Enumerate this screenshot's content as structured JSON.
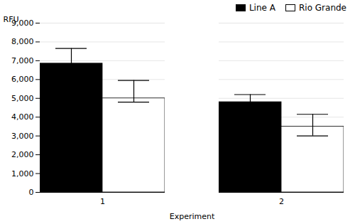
{
  "chart_data": {
    "type": "bar",
    "xlabel": "Experiment",
    "ylabel": "RFU",
    "categories": [
      "1",
      "2"
    ],
    "series": [
      {
        "name": "Line A",
        "color": "#000000",
        "values": [
          6850,
          4800
        ],
        "error_low": [
          800,
          400
        ],
        "error_high": [
          800,
          400
        ]
      },
      {
        "name": "Rio Grande",
        "color": "#ffffff",
        "values": [
          5000,
          3500
        ],
        "error_low": [
          200,
          500
        ],
        "error_high": [
          950,
          650
        ]
      }
    ],
    "ylim": [
      0,
      9000
    ],
    "yticks": [
      0,
      1000,
      2000,
      3000,
      4000,
      5000,
      6000,
      7000,
      8000,
      9000
    ],
    "grid": true,
    "legend": "upper right"
  }
}
